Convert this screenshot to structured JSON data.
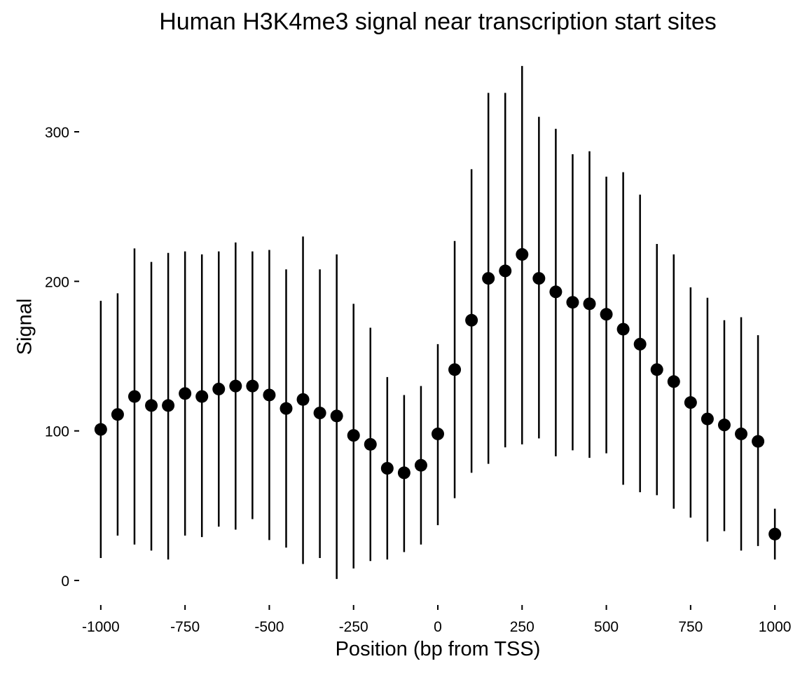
{
  "chart_data": {
    "type": "scatter",
    "title": "Human H3K4me3 signal near transcription start sites",
    "xlabel": "Position (bp from TSS)",
    "ylabel": "Signal",
    "xlim": [
      -1060,
      1060
    ],
    "ylim": [
      -15,
      345
    ],
    "x_ticks": [
      -1000,
      -750,
      -500,
      -250,
      0,
      250,
      500,
      750,
      1000
    ],
    "x_tick_labels": [
      "-1000",
      "-750",
      "-500",
      "-250",
      "0",
      "250",
      "500",
      "750",
      "1000"
    ],
    "y_ticks": [
      0,
      100,
      200,
      300
    ],
    "y_tick_labels": [
      "0",
      "100",
      "200",
      "300"
    ],
    "grid": false,
    "series": [
      {
        "name": "H3K4me3",
        "x": [
          -1000,
          -950,
          -900,
          -850,
          -800,
          -750,
          -700,
          -650,
          -600,
          -550,
          -500,
          -450,
          -400,
          -350,
          -300,
          -250,
          -200,
          -150,
          -100,
          -50,
          0,
          50,
          100,
          150,
          200,
          250,
          300,
          350,
          400,
          450,
          500,
          550,
          600,
          650,
          700,
          750,
          800,
          850,
          900,
          950,
          1000
        ],
        "y": [
          101,
          111,
          123,
          117,
          117,
          125,
          123,
          128,
          130,
          130,
          124,
          115,
          121,
          112,
          110,
          97,
          91,
          75,
          72,
          77,
          98,
          141,
          174,
          202,
          207,
          218,
          202,
          193,
          186,
          185,
          178,
          168,
          158,
          141,
          133,
          119,
          108,
          104,
          98,
          93,
          31
        ],
        "y_low": [
          15,
          30,
          24,
          20,
          14,
          30,
          29,
          36,
          34,
          41,
          27,
          22,
          11,
          15,
          1,
          8,
          13,
          14,
          19,
          24,
          37,
          55,
          72,
          78,
          89,
          91,
          95,
          83,
          87,
          82,
          85,
          64,
          59,
          57,
          48,
          42,
          26,
          33,
          20,
          23,
          14
        ],
        "y_high": [
          187,
          192,
          222,
          213,
          219,
          220,
          218,
          220,
          226,
          220,
          221,
          208,
          230,
          208,
          218,
          185,
          169,
          136,
          124,
          130,
          158,
          227,
          275,
          326,
          326,
          344,
          310,
          302,
          285,
          287,
          270,
          273,
          258,
          225,
          218,
          196,
          189,
          174,
          176,
          164,
          48
        ]
      }
    ]
  }
}
